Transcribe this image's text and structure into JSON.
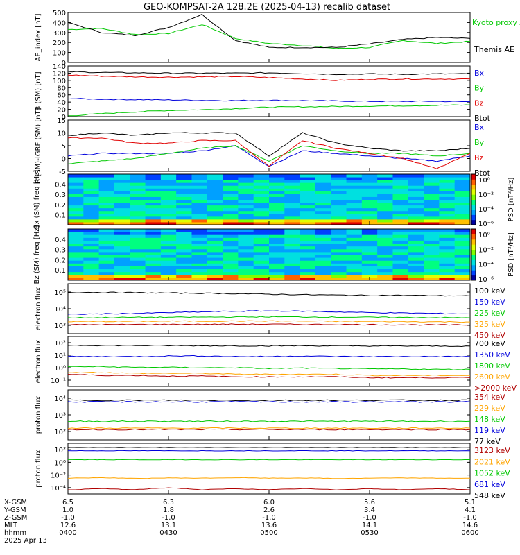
{
  "title": "GEO-KOMPSAT-2A 128.2E (2025-04-13) recalib dataset",
  "colors": {
    "black": "#000000",
    "green": "#00c800",
    "red": "#e00000",
    "blue": "#0000dc",
    "orange": "#ffa500",
    "darkred": "#b00000"
  },
  "chart_data": [
    {
      "type": "line",
      "ylabel": "AE_index [nT]",
      "ylim": [
        0,
        500
      ],
      "yticks": [
        "0",
        "100",
        "200",
        "300",
        "400",
        "500"
      ],
      "x": [
        "0400",
        "0410",
        "0420",
        "0430",
        "0440",
        "0450",
        "0500",
        "0510",
        "0520",
        "0530",
        "0540",
        "0550",
        "0600"
      ],
      "series": [
        {
          "name": "Kyoto proxy AE",
          "color": "green",
          "values": [
            330,
            340,
            280,
            290,
            380,
            240,
            190,
            170,
            140,
            150,
            220,
            190,
            210
          ]
        },
        {
          "name": "Themis AE",
          "color": "black",
          "values": [
            400,
            300,
            270,
            350,
            480,
            220,
            150,
            150,
            150,
            185,
            230,
            250,
            240
          ]
        }
      ]
    },
    {
      "type": "line",
      "ylabel": "B (SM) [nT]",
      "ylim": [
        0,
        140
      ],
      "yticks": [
        "0",
        "20",
        "40",
        "60",
        "80",
        "100",
        "120",
        "140"
      ],
      "series": [
        {
          "name": "Bx",
          "color": "blue",
          "values": [
            50,
            48,
            47,
            46,
            45,
            44,
            45,
            44,
            43,
            42,
            42,
            42,
            41
          ]
        },
        {
          "name": "By",
          "color": "green",
          "values": [
            2,
            8,
            13,
            17,
            19,
            22,
            26,
            27,
            28,
            29,
            30,
            31,
            32
          ]
        },
        {
          "name": "Bz",
          "color": "red",
          "values": [
            115,
            112,
            110,
            109,
            110,
            111,
            108,
            104,
            100,
            103,
            104,
            104,
            104
          ]
        },
        {
          "name": "Btot",
          "color": "black",
          "values": [
            124,
            122,
            121,
            120,
            120,
            120,
            121,
            119,
            117,
            118,
            117,
            118,
            118
          ]
        }
      ]
    },
    {
      "type": "line",
      "ylabel": "B (SM)-IGRF (SM) [nT]",
      "ylim": [
        -5,
        15
      ],
      "yticks": [
        "-5",
        "0",
        "5",
        "10",
        "15"
      ],
      "series": [
        {
          "name": "Bx",
          "color": "blue",
          "values": [
            1,
            2,
            2,
            2,
            3,
            5,
            -3,
            3,
            2,
            1,
            0,
            -1,
            1
          ]
        },
        {
          "name": "By",
          "color": "green",
          "values": [
            -2,
            -1,
            0,
            2,
            4,
            5,
            -1,
            5,
            3,
            2,
            2,
            1,
            2
          ]
        },
        {
          "name": "Bz",
          "color": "red",
          "values": [
            8,
            8,
            6,
            6,
            7,
            7,
            -3,
            7,
            4,
            2,
            0,
            -4,
            2
          ]
        },
        {
          "name": "Btot",
          "color": "black",
          "values": [
            9,
            10,
            9,
            10,
            10,
            10,
            1,
            10,
            6,
            4,
            3,
            3,
            4
          ]
        }
      ]
    },
    {
      "type": "heatmap",
      "ylabel": "Bx (SM) freq [Hz]",
      "ylim": [
        0,
        0.5
      ],
      "yticks": [
        "0.1",
        "0.2",
        "0.3",
        "0.4"
      ],
      "colorbar": {
        "label": "PSD [nT²/Hz]",
        "ticks": [
          "10⁰",
          "10⁻²",
          "10⁻⁴",
          "10⁻⁶"
        ]
      }
    },
    {
      "type": "heatmap",
      "ylabel": "Bz (SM) freq [Hz]",
      "ylim": [
        0,
        0.5
      ],
      "yticks": [
        "0.1",
        "0.2",
        "0.3",
        "0.4"
      ],
      "colorbar": {
        "label": "PSD [nT²/Hz]",
        "ticks": [
          "10⁰",
          "10⁻²",
          "10⁻⁴",
          "10⁻⁶"
        ]
      }
    },
    {
      "type": "line",
      "ylabel": "electron flux",
      "log": true,
      "yticks": [
        "10³",
        "10⁴",
        "10⁵"
      ],
      "series": [
        {
          "name": "100 keV",
          "color": "black",
          "values": [
            40000,
            40000,
            38000,
            36000,
            35000,
            33000,
            30000,
            28000,
            26000,
            25000,
            25000,
            24000,
            23000
          ]
        },
        {
          "name": "150 keV",
          "color": "blue",
          "values": [
            1200,
            1300,
            1400,
            1600,
            1800,
            2000,
            2100,
            2000,
            1800,
            1600,
            1500,
            1400,
            1300
          ]
        },
        {
          "name": "225 keV",
          "color": "green",
          "values": [
            700,
            720,
            750,
            760,
            780,
            800,
            820,
            800,
            780,
            760,
            740,
            720,
            700
          ]
        },
        {
          "name": "325 keV",
          "color": "orange",
          "values": [
            380,
            390,
            400,
            410,
            410,
            420,
            420,
            410,
            400,
            390,
            380,
            370,
            360
          ]
        },
        {
          "name": "450 keV",
          "color": "darkred",
          "values": [
            230,
            235,
            240,
            245,
            245,
            250,
            250,
            245,
            240,
            235,
            230,
            225,
            220
          ]
        }
      ]
    },
    {
      "type": "line",
      "ylabel": "electron flux",
      "log": true,
      "yticks": [
        "10⁻¹",
        "10⁰",
        "10¹",
        "10²"
      ],
      "series": [
        {
          "name": "700 keV",
          "color": "black",
          "values": [
            60,
            58,
            57,
            56,
            55,
            55,
            54,
            55,
            54,
            53,
            53,
            52,
            52
          ]
        },
        {
          "name": "1350 keV",
          "color": "blue",
          "values": [
            10,
            10,
            10,
            11,
            11,
            10,
            10,
            11,
            10,
            10,
            10,
            10,
            10
          ]
        },
        {
          "name": "1800 keV",
          "color": "green",
          "values": [
            2,
            2,
            1.8,
            1.8,
            1.7,
            1.7,
            1.5,
            1.6,
            1.5,
            1.4,
            1.4,
            1.3,
            1.3
          ]
        },
        {
          "name": "2600 keV",
          "color": "orange",
          "values": [
            0.8,
            0.8,
            0.7,
            0.7,
            0.7,
            0.6,
            0.6,
            0.6,
            0.6,
            0.5,
            0.5,
            0.5,
            0.5
          ]
        },
        {
          "name": ">2000 keV",
          "color": "darkred",
          "values": [
            0.6,
            0.5,
            0.5,
            0.45,
            0.45,
            0.4,
            0.4,
            0.4,
            0.4,
            0.35,
            0.35,
            0.35,
            0.35
          ]
        }
      ]
    },
    {
      "type": "line",
      "ylabel": "proton flux",
      "log": true,
      "yticks": [
        "10²",
        "10³",
        "10⁴"
      ],
      "series": [
        {
          "name": "354 keV",
          "color": "darkred",
          "values": [
            500,
            500,
            500,
            500,
            500,
            500,
            500,
            500,
            500,
            500,
            500,
            500,
            500
          ]
        },
        {
          "name": "229 keV",
          "color": "orange",
          "values": [
            600,
            600,
            600,
            600,
            600,
            600,
            600,
            600,
            600,
            600,
            600,
            600,
            600
          ]
        },
        {
          "name": "148 keV",
          "color": "green",
          "values": [
            1500,
            1500,
            1500,
            1500,
            1500,
            1500,
            1500,
            1500,
            1500,
            1500,
            1500,
            1500,
            1500
          ]
        },
        {
          "name": "119 keV",
          "color": "blue",
          "values": [
            20000,
            20000,
            20000,
            20000,
            20000,
            20000,
            20000,
            20000,
            20000,
            20000,
            20000,
            20000,
            20000
          ]
        },
        {
          "name": "77 keV",
          "color": "black",
          "values": [
            25000,
            25000,
            25000,
            25000,
            25000,
            25000,
            25000,
            25000,
            25000,
            25000,
            25000,
            25000,
            25000
          ]
        }
      ]
    },
    {
      "type": "line",
      "ylabel": "proton flux",
      "log": true,
      "yticks": [
        "10⁻⁴",
        "10⁻²",
        "10⁰",
        "10²"
      ],
      "series": [
        {
          "name": "3123 keV",
          "color": "darkred",
          "values": [
            0.0002,
            0.0003,
            0.0002,
            0.0004,
            0.0002,
            0.0003,
            0.0002,
            0.0003,
            0.0002,
            0.0003,
            0.0002,
            0.0003,
            0.0002
          ]
        },
        {
          "name": "2021 keV",
          "color": "orange",
          "values": [
            0.01,
            0.012,
            0.009,
            0.011,
            0.01,
            0.012,
            0.01,
            0.011,
            0.009,
            0.01,
            0.011,
            0.01,
            0.01
          ]
        },
        {
          "name": "1052 keV",
          "color": "green",
          "values": [
            5,
            5,
            5,
            5,
            5,
            5,
            5,
            5,
            5,
            5,
            5,
            5,
            5
          ]
        },
        {
          "name": "681 keV",
          "color": "blue",
          "values": [
            100,
            100,
            100,
            100,
            100,
            100,
            100,
            100,
            100,
            100,
            100,
            100,
            100
          ]
        },
        {
          "name": "548 keV",
          "color": "black",
          "values": [
            300,
            300,
            300,
            300,
            300,
            300,
            300,
            300,
            300,
            300,
            300,
            300,
            300
          ]
        }
      ]
    }
  ],
  "xaxis": {
    "row_labels": [
      "X-GSM",
      "Y-GSM",
      "Z-GSM",
      "MLT",
      "hhmm",
      "2025 Apr 13"
    ],
    "columns": [
      {
        "xgsm": "6.5",
        "ygsm": "1.0",
        "zgsm": "-1.0",
        "mlt": "12.6",
        "hhmm": "0400"
      },
      {
        "xgsm": "6.3",
        "ygsm": "1.8",
        "zgsm": "-1.0",
        "mlt": "13.1",
        "hhmm": "0430"
      },
      {
        "xgsm": "6.0",
        "ygsm": "2.6",
        "zgsm": "-1.0",
        "mlt": "13.6",
        "hhmm": "0500"
      },
      {
        "xgsm": "5.6",
        "ygsm": "3.4",
        "zgsm": "-1.0",
        "mlt": "14.1",
        "hhmm": "0530"
      },
      {
        "xgsm": "5.1",
        "ygsm": "4.1",
        "zgsm": "-1.0",
        "mlt": "14.6",
        "hhmm": "0600"
      }
    ]
  }
}
